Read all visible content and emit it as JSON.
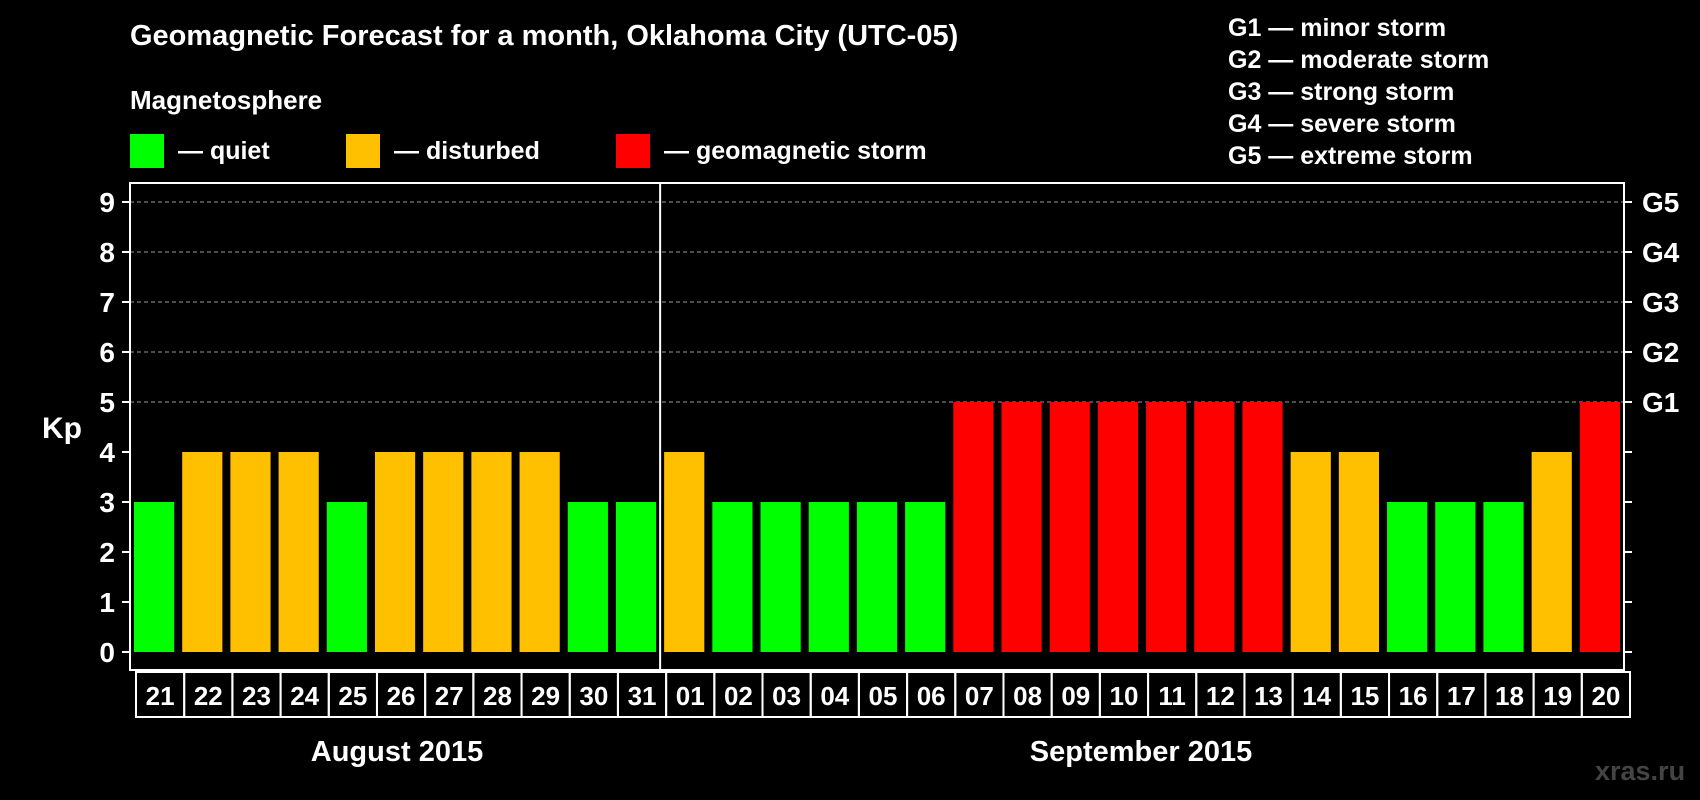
{
  "colors": {
    "quiet": "#00ff00",
    "disturbed": "#ffc000",
    "storm": "#ff0000",
    "background": "#000000",
    "watermark": "#444444"
  },
  "header": {
    "title": "Geomagnetic Forecast for a month, Oklahoma City (UTC-05)",
    "subtitle": "Magnetosphere"
  },
  "legend": {
    "items": [
      {
        "label": "— quiet",
        "color": "#00ff00"
      },
      {
        "label": "— disturbed",
        "color": "#ffc000"
      },
      {
        "label": "— geomagnetic storm",
        "color": "#ff0000"
      }
    ]
  },
  "g_scale": [
    "G1 — minor storm",
    "G2 — moderate storm",
    "G3 — strong storm",
    "G4 — severe storm",
    "G5 — extreme storm"
  ],
  "months": {
    "august": "August 2015",
    "september": "September 2015"
  },
  "watermark": "xras.ru",
  "chart_data": {
    "type": "bar",
    "ylabel": "Kp",
    "ylim": [
      0,
      9
    ],
    "yticks": [
      0,
      1,
      2,
      3,
      4,
      5,
      6,
      7,
      8,
      9
    ],
    "right_ticks": [
      {
        "value": 5,
        "label": "G1"
      },
      {
        "value": 6,
        "label": "G2"
      },
      {
        "value": 7,
        "label": "G3"
      },
      {
        "value": 8,
        "label": "G4"
      },
      {
        "value": 9,
        "label": "G5"
      }
    ],
    "grid": "dashed horizontal at Kp 5 to 9",
    "categories": [
      "21",
      "22",
      "23",
      "24",
      "25",
      "26",
      "27",
      "28",
      "29",
      "30",
      "31",
      "01",
      "02",
      "03",
      "04",
      "05",
      "06",
      "07",
      "08",
      "09",
      "10",
      "11",
      "12",
      "13",
      "14",
      "15",
      "16",
      "17",
      "18",
      "19",
      "20"
    ],
    "values": [
      3,
      4,
      4,
      4,
      3,
      4,
      4,
      4,
      4,
      3,
      3,
      4,
      3,
      3,
      3,
      3,
      3,
      5,
      5,
      5,
      5,
      5,
      5,
      5,
      4,
      4,
      3,
      3,
      3,
      4,
      5
    ],
    "month_split_after": "31"
  }
}
